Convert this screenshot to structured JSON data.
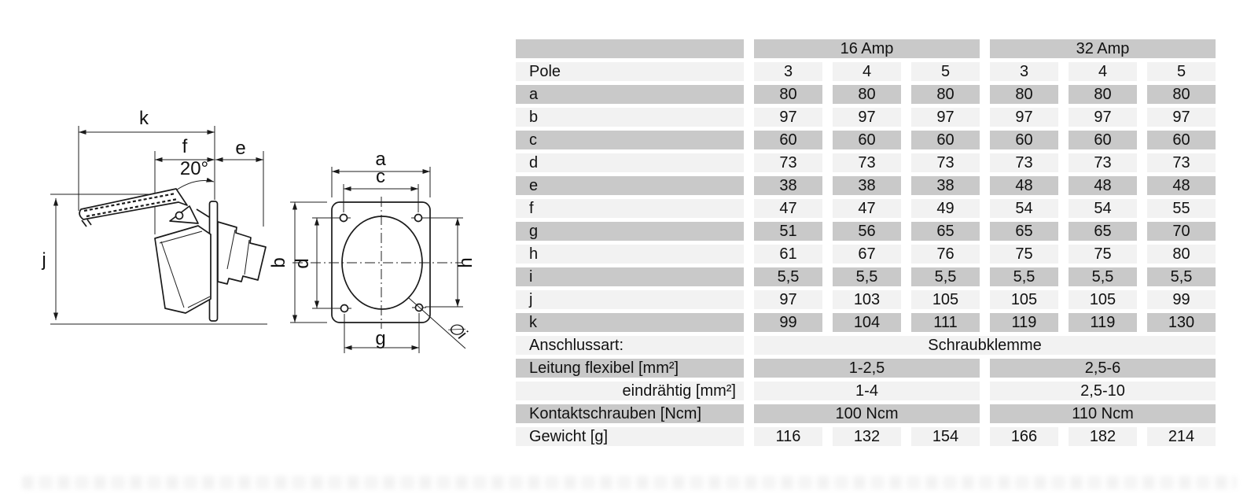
{
  "page": {
    "background": "#ffffff"
  },
  "colors": {
    "row_dark": "#c9c9c9",
    "row_light": "#f2f2f2",
    "line": "#1a1a1a"
  },
  "drawing": {
    "side_view": {
      "labels": {
        "k": "k",
        "f": "f",
        "e": "e",
        "angle": "20°",
        "j": "j"
      }
    },
    "front_view": {
      "labels": {
        "a": "a",
        "b": "b",
        "c": "c",
        "d": "d",
        "g": "g",
        "h": "h",
        "diameter": "∅i"
      }
    }
  },
  "table": {
    "amp_groups": [
      "16 Amp",
      "32 Amp"
    ],
    "pole": {
      "label": "Pole",
      "values": [
        "3",
        "4",
        "5",
        "3",
        "4",
        "5"
      ]
    },
    "dims": [
      {
        "label": "a",
        "values": [
          "80",
          "80",
          "80",
          "80",
          "80",
          "80"
        ]
      },
      {
        "label": "b",
        "values": [
          "97",
          "97",
          "97",
          "97",
          "97",
          "97"
        ]
      },
      {
        "label": "c",
        "values": [
          "60",
          "60",
          "60",
          "60",
          "60",
          "60"
        ]
      },
      {
        "label": "d",
        "values": [
          "73",
          "73",
          "73",
          "73",
          "73",
          "73"
        ]
      },
      {
        "label": "e",
        "values": [
          "38",
          "38",
          "38",
          "48",
          "48",
          "48"
        ]
      },
      {
        "label": "f",
        "values": [
          "47",
          "47",
          "49",
          "54",
          "54",
          "55"
        ]
      },
      {
        "label": "g",
        "values": [
          "51",
          "56",
          "65",
          "65",
          "65",
          "70"
        ]
      },
      {
        "label": "h",
        "values": [
          "61",
          "67",
          "76",
          "75",
          "75",
          "80"
        ]
      },
      {
        "label": "i",
        "values": [
          "5,5",
          "5,5",
          "5,5",
          "5,5",
          "5,5",
          "5,5"
        ]
      },
      {
        "label": "j",
        "values": [
          "97",
          "103",
          "105",
          "105",
          "105",
          "99"
        ]
      },
      {
        "label": "k",
        "values": [
          "99",
          "104",
          "111",
          "119",
          "119",
          "130"
        ]
      }
    ],
    "full_span_row": {
      "label": "Anschlussart:",
      "value": "Schraubklemme"
    },
    "group_span_rows": [
      {
        "label": "Leitung flexibel [mm²]",
        "align": "left",
        "values": [
          "1-2,5",
          "2,5-6"
        ]
      },
      {
        "label": "eindrähtig [mm²]",
        "align": "right",
        "values": [
          "1-4",
          "2,5-10"
        ]
      },
      {
        "label": "Kontaktschrauben [Ncm]",
        "align": "left",
        "values": [
          "100 Ncm",
          "110 Ncm"
        ]
      }
    ],
    "weight_row": {
      "label": "Gewicht [g]",
      "values": [
        "116",
        "132",
        "154",
        "166",
        "182",
        "214"
      ]
    }
  }
}
